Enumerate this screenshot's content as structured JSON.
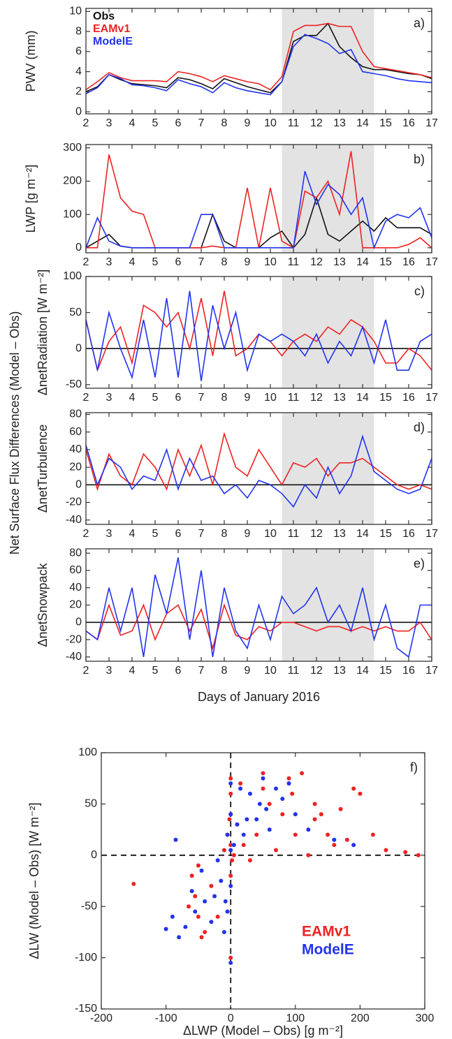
{
  "figure": {
    "ylabel": "Net Surface Flux Differences (Model – Obs)"
  },
  "chart_data": [
    {
      "type": "line",
      "label": "a)",
      "ylabel": "PWV (mm)",
      "legend": "top-left",
      "shade": [
        10.5,
        14.5
      ],
      "x": [
        2,
        2.5,
        3,
        3.5,
        4,
        4.5,
        5,
        5.5,
        6,
        6.5,
        7,
        7.5,
        8,
        8.5,
        9,
        9.5,
        10,
        10.5,
        11,
        11.5,
        12,
        12.5,
        13,
        13.5,
        14,
        14.5,
        15,
        15.5,
        16,
        16.5,
        17
      ],
      "xlim": [
        2,
        17
      ],
      "xticks": [
        2,
        3,
        4,
        5,
        6,
        7,
        8,
        9,
        10,
        11,
        12,
        13,
        14,
        15,
        16,
        17
      ],
      "ylim": [
        -0.2,
        10.3
      ],
      "yticks": [
        0,
        2,
        4,
        6,
        8,
        10
      ],
      "series": [
        {
          "name": "Obs",
          "color": "#111111",
          "values": [
            2,
            2.5,
            3.7,
            3.2,
            2.8,
            2.7,
            2.6,
            2.4,
            3.4,
            3.2,
            2.8,
            2.3,
            3.3,
            2.9,
            2.5,
            2.2,
            1.9,
            3,
            7,
            7.6,
            7.6,
            8.8,
            6.5,
            5.4,
            4.5,
            4.2,
            4.2,
            4,
            3.8,
            3.7,
            3.3
          ]
        },
        {
          "name": "EAMv1",
          "color": "#ee2222",
          "values": [
            2.2,
            3,
            3.9,
            3.4,
            3.1,
            3.1,
            3.1,
            3,
            4,
            3.8,
            3.5,
            3,
            3.6,
            3.3,
            3,
            2.8,
            2.2,
            3.5,
            8,
            8.6,
            8.6,
            8.8,
            8.5,
            8.5,
            6,
            4.5,
            4.3,
            4.1,
            3.9,
            3.7,
            3.4
          ]
        },
        {
          "name": "ModelE",
          "color": "#2233ee",
          "values": [
            1.8,
            2.4,
            3.7,
            3.3,
            2.7,
            2.6,
            2.4,
            2.1,
            3.2,
            2.8,
            2.5,
            1.9,
            2.9,
            2.4,
            2.1,
            1.9,
            1.7,
            3,
            6.5,
            7.7,
            7.3,
            6.8,
            5.8,
            6.2,
            4,
            3.8,
            3.6,
            3.3,
            3.1,
            3,
            2.9
          ]
        }
      ]
    },
    {
      "type": "line",
      "label": "b)",
      "ylabel": "LWP [g m⁻²]",
      "shade": [
        10.5,
        14.5
      ],
      "x": [
        2,
        2.5,
        3,
        3.5,
        4,
        4.5,
        5,
        5.5,
        6,
        6.5,
        7,
        7.5,
        8,
        8.5,
        9,
        9.5,
        10,
        10.5,
        11,
        11.5,
        12,
        12.5,
        13,
        13.5,
        14,
        14.5,
        15,
        15.5,
        16,
        16.5,
        17
      ],
      "xlim": [
        2,
        17
      ],
      "xticks": [
        2,
        3,
        4,
        5,
        6,
        7,
        8,
        9,
        10,
        11,
        12,
        13,
        14,
        15,
        16,
        17
      ],
      "ylim": [
        -15,
        310
      ],
      "yticks": [
        0,
        100,
        200,
        300
      ],
      "series": [
        {
          "name": "Obs",
          "color": "#111111",
          "values": [
            0,
            20,
            40,
            5,
            0,
            0,
            0,
            0,
            0,
            0,
            0,
            100,
            20,
            0,
            0,
            0,
            30,
            50,
            0,
            40,
            150,
            40,
            20,
            50,
            80,
            50,
            90,
            60,
            60,
            60,
            40
          ]
        },
        {
          "name": "EAMv1",
          "color": "#ee2222",
          "values": [
            0,
            0,
            280,
            150,
            110,
            100,
            0,
            0,
            0,
            0,
            0,
            5,
            0,
            0,
            180,
            0,
            180,
            20,
            0,
            170,
            150,
            200,
            100,
            290,
            0,
            0,
            0,
            0,
            10,
            30,
            0
          ]
        },
        {
          "name": "ModelE",
          "color": "#2233ee",
          "values": [
            0,
            90,
            20,
            5,
            0,
            0,
            0,
            0,
            0,
            0,
            100,
            100,
            0,
            0,
            0,
            0,
            0,
            0,
            0,
            230,
            130,
            190,
            160,
            100,
            150,
            0,
            80,
            100,
            90,
            120,
            30
          ]
        }
      ]
    },
    {
      "type": "line",
      "label": "c)",
      "ylabel": "ΔnetRadiation  [W m⁻²]",
      "shade": [
        10.5,
        14.5
      ],
      "zero_line": true,
      "x": [
        2,
        2.5,
        3,
        3.5,
        4,
        4.5,
        5,
        5.5,
        6,
        6.5,
        7,
        7.5,
        8,
        8.5,
        9,
        9.5,
        10,
        10.5,
        11,
        11.5,
        12,
        12.5,
        13,
        13.5,
        14,
        14.5,
        15,
        15.5,
        16,
        16.5,
        17
      ],
      "xlim": [
        2,
        17
      ],
      "xticks": [
        2,
        3,
        4,
        5,
        6,
        7,
        8,
        9,
        10,
        11,
        12,
        13,
        14,
        15,
        16,
        17
      ],
      "ylim": [
        -55,
        100
      ],
      "yticks": [
        -50,
        0,
        50,
        100
      ],
      "series": [
        {
          "name": "EAMv1",
          "color": "#ee2222",
          "values": [
            40,
            -30,
            10,
            30,
            -20,
            60,
            50,
            30,
            50,
            0,
            70,
            -10,
            80,
            -10,
            0,
            20,
            10,
            -10,
            10,
            20,
            10,
            30,
            20,
            40,
            30,
            10,
            -20,
            -20,
            0,
            -10,
            -30
          ]
        },
        {
          "name": "ModelE",
          "color": "#2233ee",
          "values": [
            40,
            -30,
            50,
            0,
            -40,
            40,
            -40,
            70,
            -40,
            80,
            -45,
            60,
            0,
            50,
            -30,
            20,
            10,
            20,
            10,
            -10,
            20,
            -20,
            10,
            -10,
            30,
            -20,
            40,
            -30,
            -30,
            10,
            20
          ]
        }
      ]
    },
    {
      "type": "line",
      "label": "d)",
      "ylabel": "ΔnetTurbulence",
      "shade": [
        10.5,
        14.5
      ],
      "zero_line": true,
      "x": [
        2,
        2.5,
        3,
        3.5,
        4,
        4.5,
        5,
        5.5,
        6,
        6.5,
        7,
        7.5,
        8,
        8.5,
        9,
        9.5,
        10,
        10.5,
        11,
        11.5,
        12,
        12.5,
        13,
        13.5,
        14,
        14.5,
        15,
        15.5,
        16,
        16.5,
        17
      ],
      "xlim": [
        2,
        17
      ],
      "xticks": [
        2,
        3,
        4,
        5,
        6,
        7,
        8,
        9,
        10,
        11,
        12,
        13,
        14,
        15,
        16,
        17
      ],
      "ylim": [
        -45,
        82
      ],
      "yticks": [
        -40,
        -20,
        0,
        20,
        40,
        60,
        80
      ],
      "series": [
        {
          "name": "EAMv1",
          "color": "#ee2222",
          "values": [
            40,
            -5,
            35,
            10,
            0,
            35,
            20,
            -5,
            40,
            10,
            45,
            0,
            58,
            20,
            10,
            40,
            20,
            0,
            25,
            20,
            30,
            10,
            25,
            25,
            30,
            20,
            10,
            0,
            -5,
            0,
            -5
          ]
        },
        {
          "name": "ModelE",
          "color": "#2233ee",
          "values": [
            45,
            0,
            30,
            20,
            -5,
            10,
            5,
            40,
            -5,
            30,
            5,
            10,
            -10,
            0,
            -15,
            5,
            0,
            -10,
            -25,
            0,
            -15,
            20,
            -10,
            10,
            55,
            15,
            5,
            -5,
            -10,
            -5,
            30
          ]
        }
      ]
    },
    {
      "type": "line",
      "label": "e)",
      "ylabel": "ΔnetSnowpack",
      "xlabel": "Days of January 2016",
      "shade": [
        10.5,
        14.5
      ],
      "zero_line": true,
      "x": [
        2,
        2.5,
        3,
        3.5,
        4,
        4.5,
        5,
        5.5,
        6,
        6.5,
        7,
        7.5,
        8,
        8.5,
        9,
        9.5,
        10,
        10.5,
        11,
        11.5,
        12,
        12.5,
        13,
        13.5,
        14,
        14.5,
        15,
        15.5,
        16,
        16.5,
        17
      ],
      "xlim": [
        2,
        17
      ],
      "xticks": [
        2,
        3,
        4,
        5,
        6,
        7,
        8,
        9,
        10,
        11,
        12,
        13,
        14,
        15,
        16,
        17
      ],
      "ylim": [
        -45,
        85
      ],
      "yticks": [
        -40,
        -20,
        0,
        20,
        40,
        60,
        80
      ],
      "series": [
        {
          "name": "EAMv1",
          "color": "#ee2222",
          "values": [
            -10,
            -20,
            20,
            -15,
            -10,
            20,
            -20,
            10,
            20,
            -10,
            15,
            -30,
            20,
            -15,
            -20,
            -5,
            -10,
            0,
            0,
            -5,
            -10,
            -5,
            -5,
            -10,
            -5,
            -10,
            -5,
            -10,
            -10,
            0,
            -20
          ]
        },
        {
          "name": "ModelE",
          "color": "#2233ee",
          "values": [
            -10,
            -20,
            40,
            -10,
            40,
            -40,
            55,
            10,
            75,
            -20,
            60,
            -40,
            40,
            -10,
            -30,
            20,
            -20,
            30,
            10,
            20,
            40,
            0,
            20,
            -10,
            40,
            -20,
            20,
            -30,
            -40,
            20,
            20
          ]
        }
      ]
    },
    {
      "type": "scatter",
      "label": "f)",
      "xlabel": "ΔLWP (Model – Obs) [g m⁻²]",
      "ylabel": "ΔLW (Model – Obs) [W m⁻²]",
      "legend": "bottom-right",
      "zero_line": true,
      "xlim": [
        -200,
        300
      ],
      "xticks": [
        -200,
        -100,
        0,
        100,
        200,
        300
      ],
      "ylim": [
        -150,
        100
      ],
      "yticks": [
        -150,
        -100,
        -50,
        0,
        50,
        100
      ],
      "series": [
        {
          "name": "EAMv1",
          "color": "#ee2222",
          "x": [
            -150,
            -60,
            -55,
            -50,
            -45,
            -40,
            -50,
            -65,
            -30,
            -20,
            -10,
            -5,
            0,
            0,
            0,
            0,
            0,
            5,
            10,
            15,
            20,
            30,
            40,
            50,
            60,
            70,
            80,
            90,
            95,
            100,
            110,
            120,
            130,
            140,
            150,
            160,
            170,
            180,
            190,
            200,
            220,
            240,
            270,
            290,
            0,
            2,
            -2,
            50,
            90,
            130
          ],
          "values": [
            -28,
            -20,
            -40,
            -60,
            -80,
            -75,
            -10,
            -50,
            -30,
            -60,
            5,
            20,
            60,
            40,
            -100,
            10,
            -20,
            0,
            30,
            70,
            10,
            -5,
            20,
            80,
            50,
            5,
            40,
            75,
            60,
            20,
            80,
            0,
            50,
            40,
            20,
            10,
            45,
            15,
            65,
            60,
            20,
            5,
            3,
            0,
            75,
            -5,
            35,
            65,
            70,
            35
          ]
        },
        {
          "name": "ModelE",
          "color": "#2233ee",
          "x": [
            -100,
            -90,
            -85,
            -80,
            -70,
            -60,
            -55,
            -45,
            -40,
            -30,
            -25,
            -20,
            -10,
            -5,
            -5,
            0,
            0,
            0,
            0,
            0,
            5,
            10,
            15,
            20,
            30,
            40,
            50,
            55,
            60,
            70,
            80,
            90,
            100,
            120,
            160,
            190,
            -15,
            -8,
            25,
            45
          ],
          "values": [
            -72,
            -60,
            15,
            -80,
            -70,
            -35,
            -55,
            -15,
            -45,
            -65,
            -40,
            -5,
            -75,
            -55,
            20,
            -105,
            -30,
            70,
            40,
            5,
            10,
            30,
            65,
            20,
            60,
            35,
            75,
            45,
            25,
            65,
            55,
            70,
            40,
            25,
            15,
            10,
            -25,
            -45,
            35,
            50
          ]
        }
      ]
    }
  ]
}
